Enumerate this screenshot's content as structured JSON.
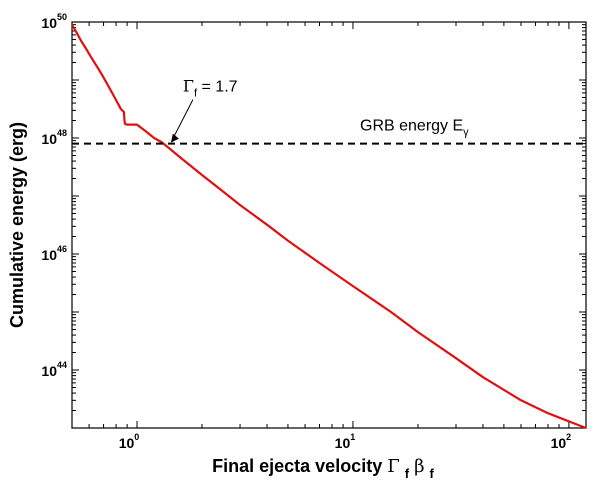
{
  "chart_data": {
    "type": "line",
    "xscale": "log",
    "yscale": "log",
    "xlim": [
      0.5,
      120
    ],
    "ylim": [
      1e+43,
      1e+50
    ],
    "xlabel": "Final ejecta velocity",
    "xlabel_symbol": "Γ",
    "xlabel_symbol_sub": "f",
    "xlabel_symbol2": "β",
    "xlabel_symbol2_sub": "f",
    "ylabel": "Cumulative energy (erg)",
    "x_tick_base": "10",
    "x_tick_exponents": [
      "0",
      "1",
      "2"
    ],
    "y_tick_base": "10",
    "y_tick_exponents": [
      "44",
      "46",
      "48",
      "50"
    ],
    "grid": false,
    "series": [
      {
        "color": "#e01010",
        "style": "solid",
        "points": [
          [
            0.5,
            9e+49
          ],
          [
            0.52,
            7e+49
          ],
          [
            0.55,
            4.8e+49
          ],
          [
            0.58,
            3.5e+49
          ],
          [
            0.62,
            2.3e+49
          ],
          [
            0.66,
            1.6e+49
          ],
          [
            0.7,
            1.1e+49
          ],
          [
            0.75,
            7e+48
          ],
          [
            0.8,
            4.5e+48
          ],
          [
            0.84,
            3.2e+48
          ],
          [
            0.87,
            2.8e+48
          ],
          [
            0.875,
            2e+48
          ],
          [
            0.88,
            1.75e+48
          ],
          [
            0.9,
            1.7e+48
          ],
          [
            1.0,
            1.7e+48
          ],
          [
            1.1,
            1.3e+48
          ],
          [
            1.2,
            1e+48
          ],
          [
            1.3,
            8.5e+47
          ],
          [
            1.42,
            6.5e+47
          ],
          [
            1.6,
            4.5e+47
          ],
          [
            2.0,
            2.3e+47
          ],
          [
            2.5,
            1.2e+47
          ],
          [
            3.0,
            7e+46
          ],
          [
            4.0,
            3.2e+46
          ],
          [
            5.0,
            1.7e+46
          ],
          [
            7.0,
            7e+45
          ],
          [
            10.0,
            2.8e+45
          ],
          [
            15.0,
            1e+45
          ],
          [
            20.0,
            4.5e+44
          ],
          [
            30.0,
            1.6e+44
          ],
          [
            40.0,
            7.5e+43
          ],
          [
            60.0,
            3e+43
          ],
          [
            80.0,
            1.8e+43
          ],
          [
            100.0,
            1.3e+43
          ],
          [
            120.0,
            1e+43
          ]
        ]
      },
      {
        "color": "#000000",
        "style": "dashed",
        "points": [
          [
            0.5,
            8e+47
          ],
          [
            120.0,
            8e+47
          ]
        ]
      }
    ],
    "annotations": [
      {
        "id": "gamma",
        "symbol": "Γ",
        "sub": "f",
        "text": " = 1.7",
        "x": 1.42,
        "y": 8e+47
      },
      {
        "id": "grb",
        "text": "GRB energy E",
        "sub": "γ"
      }
    ]
  }
}
